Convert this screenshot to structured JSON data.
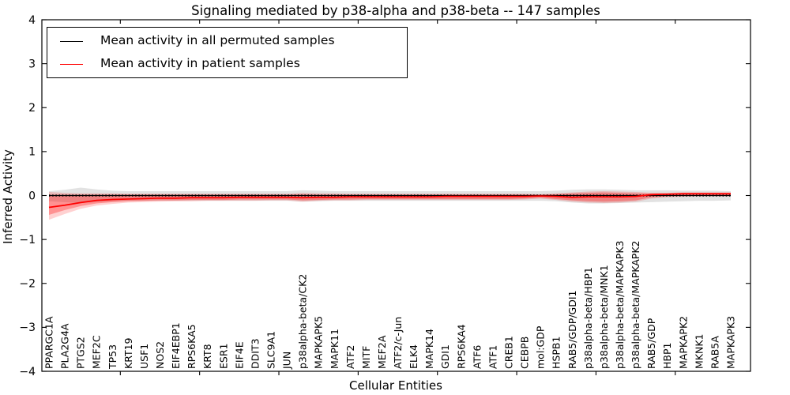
{
  "figure": {
    "background": "#ffffff",
    "frame_color": "#000000"
  },
  "chart_data": {
    "type": "line",
    "title": "Signaling mediated by p38-alpha and p38-beta -- 147 samples",
    "xlabel": "Cellular Entities",
    "ylabel": "Inferred Activity",
    "ylim": [
      -4,
      4
    ],
    "yticks": [
      4,
      3,
      2,
      1,
      0,
      -1,
      -2,
      -3,
      -4
    ],
    "ytick_labels": [
      "4",
      "3",
      "2",
      "1",
      "0",
      "−1",
      "−2",
      "−3",
      "−4"
    ],
    "x_major_tick_positions": [
      4.5,
      9.5,
      14.5,
      19.5,
      24.5,
      29.5,
      34.5,
      39.5
    ],
    "grid": false,
    "legend_position": "upper left",
    "categories": [
      "PPARGC1A",
      "PLA2G4A",
      "PTGS2",
      "MEF2C",
      "TP53",
      "KRT19",
      "USF1",
      "NOS2",
      "EIF4EBP1",
      "RPS6KA5",
      "KRT8",
      "ESR1",
      "EIF4E",
      "DDIT3",
      "SLC9A1",
      "JUN",
      "p38alpha-beta/CK2",
      "MAPKAPK5",
      "MAPK11",
      "ATF2",
      "MITF",
      "MEF2A",
      "ATF2/c-Jun",
      "ELK4",
      "MAPK14",
      "GDI1",
      "RPS6KA4",
      "ATF6",
      "ATF1",
      "CREB1",
      "CEBPB",
      "mol:GDP",
      "HSPB1",
      "RAB5/GDP/GDI1",
      "p38alpha-beta/HBP1",
      "p38alpha-beta/MNK1",
      "p38alpha-beta/MAPKAPK3",
      "p38alpha-beta/MAPKAPK2",
      "RAB5/GDP",
      "HBP1",
      "MAPKAPK2",
      "MKNK1",
      "RAB5A",
      "MAPKAPK3"
    ],
    "series": [
      {
        "name": "Mean activity in all permuted samples",
        "color": "#000000",
        "style": "solid-with-dots",
        "values": [
          0,
          0,
          0,
          0,
          0,
          0,
          0,
          0,
          0,
          0,
          0,
          0,
          0,
          0,
          0,
          0,
          0,
          0,
          0,
          0,
          0,
          0,
          0,
          0,
          0,
          0,
          0,
          0,
          0,
          0,
          0,
          0,
          0,
          0,
          0,
          0,
          0,
          0,
          0,
          0,
          0,
          0,
          0,
          0
        ]
      },
      {
        "name": "Mean activity in patient samples",
        "color": "#ff0000",
        "style": "solid",
        "values": [
          -0.27,
          -0.22,
          -0.16,
          -0.11,
          -0.09,
          -0.08,
          -0.07,
          -0.06,
          -0.06,
          -0.05,
          -0.05,
          -0.05,
          -0.04,
          -0.04,
          -0.04,
          -0.04,
          -0.05,
          -0.04,
          -0.04,
          -0.03,
          -0.03,
          -0.03,
          -0.03,
          -0.03,
          -0.03,
          -0.02,
          -0.02,
          -0.02,
          -0.02,
          -0.02,
          -0.02,
          -0.01,
          -0.02,
          -0.04,
          -0.03,
          -0.03,
          -0.03,
          -0.02,
          0.02,
          0.03,
          0.04,
          0.04,
          0.04,
          0.04
        ]
      }
    ],
    "bands": [
      {
        "name": "permuted-samples-range",
        "color": "#8a8a8a",
        "opacity": 0.25,
        "upper": [
          0.1,
          0.13,
          0.18,
          0.14,
          0.11,
          0.1,
          0.1,
          0.1,
          0.1,
          0.1,
          0.1,
          0.1,
          0.1,
          0.1,
          0.1,
          0.1,
          0.12,
          0.11,
          0.1,
          0.1,
          0.1,
          0.1,
          0.1,
          0.1,
          0.1,
          0.1,
          0.1,
          0.1,
          0.1,
          0.1,
          0.1,
          0.1,
          0.11,
          0.13,
          0.14,
          0.14,
          0.13,
          0.12,
          0.12,
          0.12,
          0.11,
          0.11,
          0.11,
          0.1
        ],
        "lower": [
          -0.13,
          -0.15,
          -0.17,
          -0.15,
          -0.13,
          -0.12,
          -0.12,
          -0.12,
          -0.12,
          -0.12,
          -0.12,
          -0.12,
          -0.12,
          -0.12,
          -0.12,
          -0.12,
          -0.14,
          -0.13,
          -0.12,
          -0.12,
          -0.12,
          -0.12,
          -0.12,
          -0.12,
          -0.12,
          -0.12,
          -0.12,
          -0.12,
          -0.12,
          -0.12,
          -0.12,
          -0.12,
          -0.13,
          -0.16,
          -0.18,
          -0.18,
          -0.17,
          -0.16,
          -0.15,
          -0.14,
          -0.13,
          -0.12,
          -0.12,
          -0.11
        ]
      },
      {
        "name": "patient-samples-range-outer",
        "color": "#ff0000",
        "opacity": 0.18,
        "upper": [
          0.08,
          0.06,
          0.05,
          0.05,
          0.05,
          0.04,
          0.04,
          0.04,
          0.04,
          0.04,
          0.04,
          0.04,
          0.04,
          0.04,
          0.04,
          0.04,
          0.06,
          0.05,
          0.05,
          0.04,
          0.04,
          0.04,
          0.04,
          0.04,
          0.04,
          0.04,
          0.04,
          0.04,
          0.04,
          0.04,
          0.04,
          0.03,
          0.05,
          0.07,
          0.09,
          0.1,
          0.09,
          0.08,
          0.06,
          0.06,
          0.07,
          0.07,
          0.07,
          0.07
        ],
        "lower": [
          -0.55,
          -0.42,
          -0.3,
          -0.23,
          -0.19,
          -0.16,
          -0.15,
          -0.14,
          -0.13,
          -0.13,
          -0.12,
          -0.12,
          -0.12,
          -0.12,
          -0.11,
          -0.11,
          -0.14,
          -0.12,
          -0.11,
          -0.11,
          -0.1,
          -0.1,
          -0.1,
          -0.1,
          -0.1,
          -0.1,
          -0.1,
          -0.1,
          -0.1,
          -0.1,
          -0.09,
          -0.07,
          -0.1,
          -0.14,
          -0.16,
          -0.17,
          -0.16,
          -0.14,
          -0.07,
          -0.04,
          -0.03,
          -0.02,
          -0.02,
          -0.02
        ]
      },
      {
        "name": "patient-samples-range-inner",
        "color": "#ff0000",
        "opacity": 0.3,
        "upper": [
          0.02,
          0.02,
          0.02,
          0.02,
          0.02,
          0.02,
          0.02,
          0.02,
          0.02,
          0.02,
          0.02,
          0.02,
          0.02,
          0.02,
          0.02,
          0.02,
          0.03,
          0.02,
          0.02,
          0.02,
          0.02,
          0.02,
          0.02,
          0.02,
          0.02,
          0.02,
          0.02,
          0.02,
          0.02,
          0.02,
          0.02,
          0.02,
          0.03,
          0.05,
          0.06,
          0.07,
          0.06,
          0.05,
          0.05,
          0.05,
          0.06,
          0.06,
          0.06,
          0.06
        ],
        "lower": [
          -0.44,
          -0.33,
          -0.24,
          -0.18,
          -0.15,
          -0.13,
          -0.12,
          -0.11,
          -0.11,
          -0.1,
          -0.1,
          -0.1,
          -0.09,
          -0.09,
          -0.09,
          -0.09,
          -0.11,
          -0.1,
          -0.09,
          -0.09,
          -0.08,
          -0.08,
          -0.08,
          -0.08,
          -0.08,
          -0.08,
          -0.08,
          -0.08,
          -0.08,
          -0.08,
          -0.07,
          -0.05,
          -0.08,
          -0.11,
          -0.13,
          -0.14,
          -0.13,
          -0.11,
          -0.04,
          -0.02,
          -0.01,
          -0.01,
          -0.01,
          -0.01
        ]
      }
    ]
  }
}
